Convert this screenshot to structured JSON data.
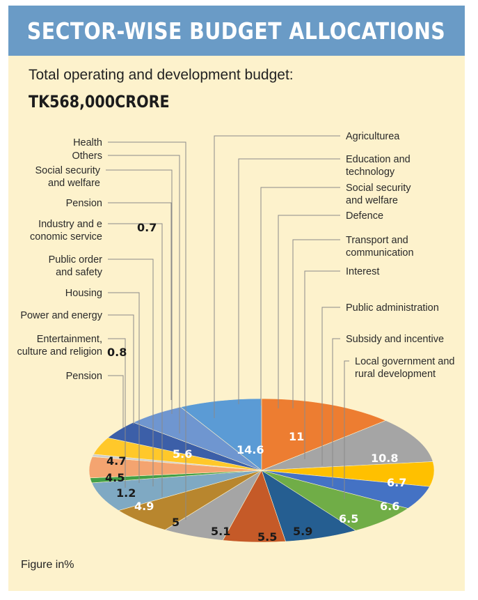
{
  "header": {
    "title": "SECTOR-WISE BUDGET ALLOCATIONS",
    "subtitle": "Total operating and development budget:",
    "total": "TK568,000CRORE"
  },
  "footnote": "Figure in%",
  "chart_data": {
    "type": "pie",
    "title": "SECTOR-WISE BUDGET ALLOCATIONS",
    "unit": "Figure in%",
    "legend_placement": "callout-labels",
    "slices": [
      {
        "label": "Agriculturea",
        "value": 14.6,
        "color": "#5b9bd5",
        "value_color": "#ffffff"
      },
      {
        "label": "Education and technology",
        "value": 11,
        "color": "#ed7d31",
        "value_color": "#ffffff"
      },
      {
        "label": "Social security and welfare",
        "value": 10.8,
        "color": "#a5a5a5",
        "value_color": "#ffffff"
      },
      {
        "label": "Defence",
        "value": 6.7,
        "color": "#ffc000",
        "value_color": "#ffffff"
      },
      {
        "label": "Transport and communication",
        "value": 6.6,
        "color": "#4472c4",
        "value_color": "#ffffff"
      },
      {
        "label": "Interest",
        "value": 6.5,
        "color": "#70ad47",
        "value_color": "#ffffff"
      },
      {
        "label": "Public administration",
        "value": 5.9,
        "color": "#255e91",
        "value_color": "#1a1a1a"
      },
      {
        "label": "Subsidy and incentive",
        "value": 5.5,
        "color": "#c55a28",
        "value_color": "#1a1a1a"
      },
      {
        "label": "Local government and rural development",
        "value": 5.1,
        "color": "#a5a5a5",
        "value_color": "#1a1a1a"
      },
      {
        "label": "Health",
        "value": 5,
        "color": "#b8862e",
        "value_color": "#1a1a1a"
      },
      {
        "label": "Others",
        "value": 4.9,
        "color": "#7fa9c3",
        "value_color": "#ffffff"
      },
      {
        "label": "Social security and welfare",
        "value": 1.2,
        "color": "#43a047",
        "value_color": "#1a1a1a"
      },
      {
        "label": "Pension",
        "value": 4.5,
        "color": "#f4a470",
        "value_color": "#1a1a1a"
      },
      {
        "label": "Industry and e conomic service",
        "value": 0.7,
        "color": "#cfcfcf",
        "value_color": "#1a1a1a"
      },
      {
        "label": "Public order and safety",
        "value": 4.7,
        "color": "#ffc82a",
        "value_color": "#1a1a1a"
      },
      {
        "label": "Housing",
        "value": 0.8,
        "color": "#3c5fa8",
        "value_color": "#1a1a1a"
      },
      {
        "label": "Power and energy",
        "value": 5.6,
        "color": "#6f96d0",
        "value_color": "#ffffff"
      },
      {
        "label": "Entertainment, culture and religion",
        "value": 0.8,
        "color": "#5b9bd5",
        "value_color": "#1a1a1a"
      },
      {
        "label": "Pension",
        "value": 0.8,
        "color": "#5b9bd5",
        "value_color": "#1a1a1a"
      }
    ]
  }
}
